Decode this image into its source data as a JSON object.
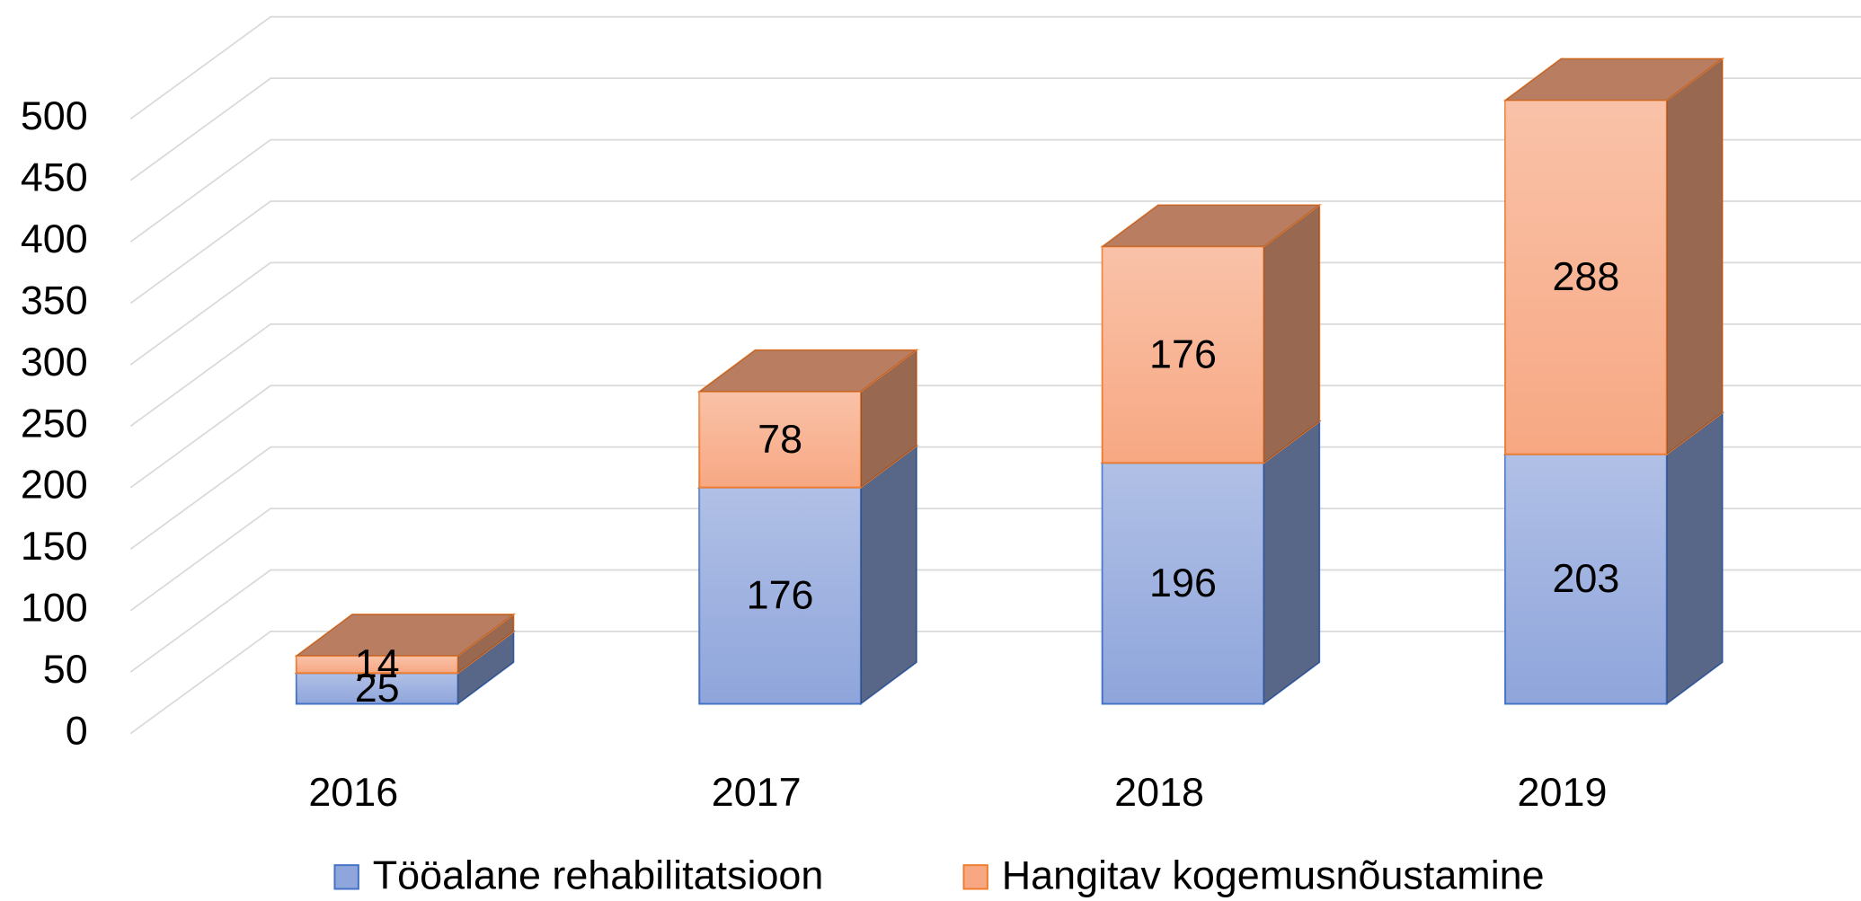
{
  "chart_data": {
    "type": "bar3d_stacked",
    "categories": [
      "2016",
      "2017",
      "2018",
      "2019"
    ],
    "series": [
      {
        "name": "Tööalane rehabilitatsioon",
        "color": "#8fa5db",
        "stroke": "#4472c4",
        "values": [
          25,
          176,
          196,
          203
        ]
      },
      {
        "name": "Hangitav kogemusnõustamine",
        "color": "#f7a883",
        "stroke": "#ed7d31",
        "values": [
          14,
          78,
          176,
          288
        ]
      }
    ],
    "ylim": [
      0,
      500
    ],
    "yticks": [
      0,
      50,
      100,
      150,
      200,
      250,
      300,
      350,
      400,
      450,
      500
    ],
    "grid": true,
    "legend": "bottom"
  }
}
